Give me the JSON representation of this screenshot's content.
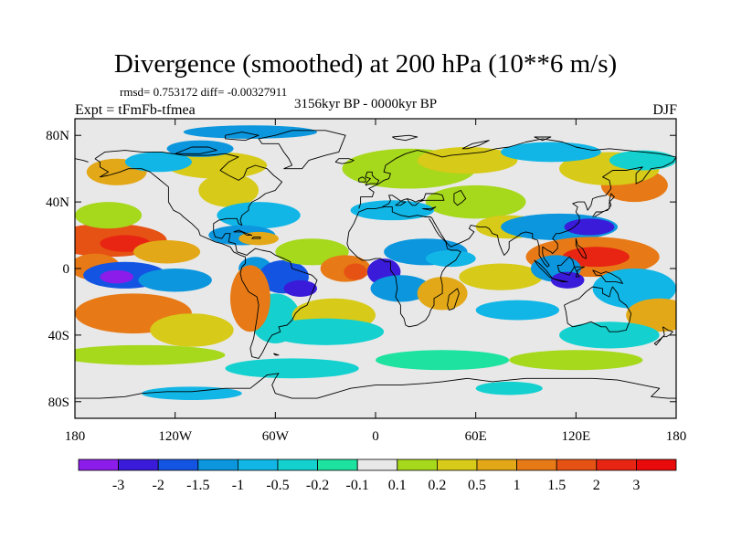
{
  "header": {
    "title": "Divergence (smoothed) at 200 hPa (10**6 m/s)",
    "stats": "rmsd= 0.753172 diff= -0.00327911",
    "experiment": "Expt = tFmFb-tfmea",
    "period": "3156kyr BP - 0000kyr BP",
    "season": "DJF"
  },
  "map": {
    "lat_labels": [
      "80N",
      "40N",
      "0",
      "40S",
      "80S"
    ],
    "lon_labels": [
      "180",
      "120W",
      "60W",
      "0",
      "60E",
      "120E",
      "180"
    ],
    "lat_values": [
      80,
      40,
      0,
      -40,
      -80
    ],
    "lon_values": [
      -180,
      -120,
      -60,
      0,
      60,
      120,
      180
    ],
    "lat_range": [
      -90,
      90
    ],
    "lon_range": [
      -180,
      180
    ]
  },
  "colorbar": {
    "labels": [
      "-3",
      "-2",
      "-1.5",
      "-1",
      "-0.5",
      "-0.2",
      "-0.1",
      "0.1",
      "0.2",
      "0.5",
      "1",
      "1.5",
      "2",
      "3"
    ],
    "colors": [
      "#8b1ce9",
      "#3a1bd9",
      "#1355e2",
      "#0b96dd",
      "#11b6e6",
      "#14d1d0",
      "#1de2a0",
      "#e8e8e8",
      "#a6d81c",
      "#d7ca18",
      "#e3a817",
      "#e77a16",
      "#e65213",
      "#e82412",
      "#e90b0b"
    ]
  },
  "anomaly_blobs": [
    {
      "lon": -160,
      "lat": 17,
      "rx": 35,
      "ry": 10,
      "value": 2
    },
    {
      "lon": -150,
      "lat": 15,
      "rx": 15,
      "ry": 5,
      "value": 3
    },
    {
      "lon": -125,
      "lat": 10,
      "rx": 20,
      "ry": 7,
      "value": 1
    },
    {
      "lon": -168,
      "lat": 1,
      "rx": 15,
      "ry": 8,
      "value": 1.5
    },
    {
      "lon": -150,
      "lat": -4,
      "rx": 25,
      "ry": 8,
      "value": -1.5
    },
    {
      "lon": -155,
      "lat": -5,
      "rx": 10,
      "ry": 4,
      "value": -3
    },
    {
      "lon": -120,
      "lat": -7,
      "rx": 22,
      "ry": 7,
      "value": -1
    },
    {
      "lon": -145,
      "lat": -27,
      "rx": 35,
      "ry": 12,
      "value": 1.5
    },
    {
      "lon": -110,
      "lat": -37,
      "rx": 25,
      "ry": 10,
      "value": 0.5
    },
    {
      "lon": -160,
      "lat": 32,
      "rx": 20,
      "ry": 8,
      "value": 0.2
    },
    {
      "lon": -155,
      "lat": 58,
      "rx": 18,
      "ry": 8,
      "value": 1
    },
    {
      "lon": -95,
      "lat": 62,
      "rx": 30,
      "ry": 8,
      "value": 0.5
    },
    {
      "lon": -130,
      "lat": 64,
      "rx": 20,
      "ry": 6,
      "value": -0.5
    },
    {
      "lon": -105,
      "lat": 72,
      "rx": 20,
      "ry": 5,
      "value": -1
    },
    {
      "lon": -75,
      "lat": 82,
      "rx": 40,
      "ry": 4,
      "value": -1
    },
    {
      "lon": -88,
      "lat": 47,
      "rx": 18,
      "ry": 10,
      "value": 0.5
    },
    {
      "lon": -70,
      "lat": 32,
      "rx": 25,
      "ry": 8,
      "value": -0.5
    },
    {
      "lon": -80,
      "lat": 20,
      "rx": 20,
      "ry": 6,
      "value": -1
    },
    {
      "lon": -70,
      "lat": 18,
      "rx": 12,
      "ry": 4,
      "value": 1
    },
    {
      "lon": -72,
      "lat": 0,
      "rx": 10,
      "ry": 7,
      "value": -1
    },
    {
      "lon": -55,
      "lat": -5,
      "rx": 15,
      "ry": 10,
      "value": -1.5
    },
    {
      "lon": -45,
      "lat": -12,
      "rx": 10,
      "ry": 5,
      "value": -2
    },
    {
      "lon": -60,
      "lat": -30,
      "rx": 15,
      "ry": 15,
      "value": -0.2
    },
    {
      "lon": -75,
      "lat": -18,
      "rx": 12,
      "ry": 20,
      "value": 1.5
    },
    {
      "lon": -38,
      "lat": 10,
      "rx": 22,
      "ry": 8,
      "value": 0.2
    },
    {
      "lon": -25,
      "lat": -28,
      "rx": 25,
      "ry": 10,
      "value": 0.5
    },
    {
      "lon": -30,
      "lat": -38,
      "rx": 35,
      "ry": 8,
      "value": -0.2
    },
    {
      "lon": -18,
      "lat": 0,
      "rx": 15,
      "ry": 8,
      "value": 1.5
    },
    {
      "lon": -12,
      "lat": -2,
      "rx": 7,
      "ry": 5,
      "value": 2
    },
    {
      "lon": 5,
      "lat": -2,
      "rx": 10,
      "ry": 8,
      "value": -2
    },
    {
      "lon": 15,
      "lat": -12,
      "rx": 18,
      "ry": 8,
      "value": -1
    },
    {
      "lon": 30,
      "lat": 10,
      "rx": 25,
      "ry": 8,
      "value": -1
    },
    {
      "lon": 45,
      "lat": 6,
      "rx": 15,
      "ry": 5,
      "value": -0.5
    },
    {
      "lon": 40,
      "lat": -15,
      "rx": 15,
      "ry": 10,
      "value": 1
    },
    {
      "lon": 75,
      "lat": -5,
      "rx": 25,
      "ry": 8,
      "value": 0.5
    },
    {
      "lon": 85,
      "lat": -25,
      "rx": 25,
      "ry": 6,
      "value": -0.5
    },
    {
      "lon": 20,
      "lat": 60,
      "rx": 40,
      "ry": 12,
      "value": 0.2
    },
    {
      "lon": 55,
      "lat": 65,
      "rx": 30,
      "ry": 8,
      "value": 0.5
    },
    {
      "lon": 60,
      "lat": 40,
      "rx": 30,
      "ry": 10,
      "value": 0.2
    },
    {
      "lon": 10,
      "lat": 35,
      "rx": 25,
      "ry": 6,
      "value": -0.5
    },
    {
      "lon": 80,
      "lat": 25,
      "rx": 20,
      "ry": 7,
      "value": 0.5
    },
    {
      "lon": 110,
      "lat": 25,
      "rx": 35,
      "ry": 8,
      "value": -1
    },
    {
      "lon": 128,
      "lat": 25,
      "rx": 15,
      "ry": 5,
      "value": -2
    },
    {
      "lon": 130,
      "lat": 7,
      "rx": 40,
      "ry": 12,
      "value": 1.5
    },
    {
      "lon": 132,
      "lat": 7,
      "rx": 20,
      "ry": 6,
      "value": 3
    },
    {
      "lon": 108,
      "lat": 0,
      "rx": 15,
      "ry": 8,
      "value": -1
    },
    {
      "lon": 115,
      "lat": -7,
      "rx": 10,
      "ry": 5,
      "value": -2
    },
    {
      "lon": 155,
      "lat": -12,
      "rx": 25,
      "ry": 12,
      "value": -0.5
    },
    {
      "lon": 170,
      "lat": -28,
      "rx": 20,
      "ry": 10,
      "value": 1
    },
    {
      "lon": 140,
      "lat": -40,
      "rx": 30,
      "ry": 8,
      "value": -0.2
    },
    {
      "lon": 155,
      "lat": 50,
      "rx": 20,
      "ry": 10,
      "value": 1.5
    },
    {
      "lon": 140,
      "lat": 60,
      "rx": 30,
      "ry": 10,
      "value": 0.5
    },
    {
      "lon": 160,
      "lat": 65,
      "rx": 20,
      "ry": 6,
      "value": -0.2
    },
    {
      "lon": 105,
      "lat": 70,
      "rx": 30,
      "ry": 6,
      "value": -0.5
    },
    {
      "lon": -140,
      "lat": -52,
      "rx": 50,
      "ry": 6,
      "value": 0.2
    },
    {
      "lon": -50,
      "lat": -60,
      "rx": 40,
      "ry": 6,
      "value": -0.2
    },
    {
      "lon": 40,
      "lat": -55,
      "rx": 40,
      "ry": 6,
      "value": -0.1
    },
    {
      "lon": 120,
      "lat": -55,
      "rx": 40,
      "ry": 6,
      "value": 0.2
    },
    {
      "lon": -110,
      "lat": -75,
      "rx": 30,
      "ry": 4,
      "value": -0.5
    },
    {
      "lon": 80,
      "lat": -72,
      "rx": 20,
      "ry": 4,
      "value": -0.2
    }
  ]
}
